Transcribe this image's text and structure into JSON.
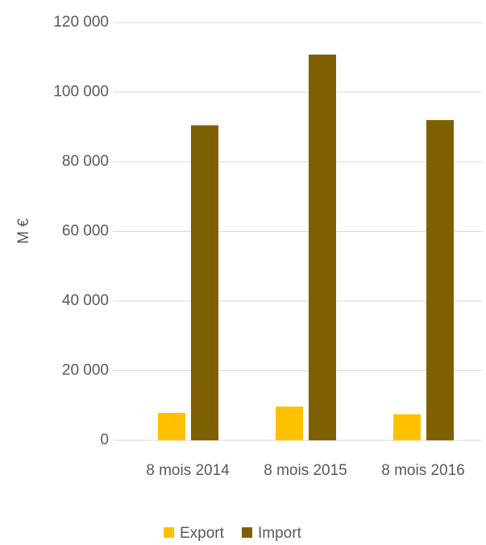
{
  "chart_data": {
    "type": "bar",
    "y_label": "M €",
    "categories": [
      "8 mois 2014",
      "8 mois 2015",
      "8 mois 2016"
    ],
    "series": [
      {
        "name": "Export",
        "color": "#ffc000",
        "values": [
          7900,
          9700,
          7500
        ]
      },
      {
        "name": "Import",
        "color": "#7f6000",
        "values": [
          90500,
          110800,
          92000
        ]
      }
    ],
    "ylim": [
      0,
      120000
    ],
    "yticks": [
      0,
      {
        "value": 20000,
        "label": "20 000"
      },
      {
        "value": 40000,
        "label": "40 000"
      },
      {
        "value": 60000,
        "label": "60 000"
      },
      {
        "value": 80000,
        "label": "80 000"
      },
      {
        "value": 100000,
        "label": "100 000"
      },
      {
        "value": 120000,
        "label": "120 000"
      }
    ],
    "grid": true,
    "legend": "bottom"
  }
}
